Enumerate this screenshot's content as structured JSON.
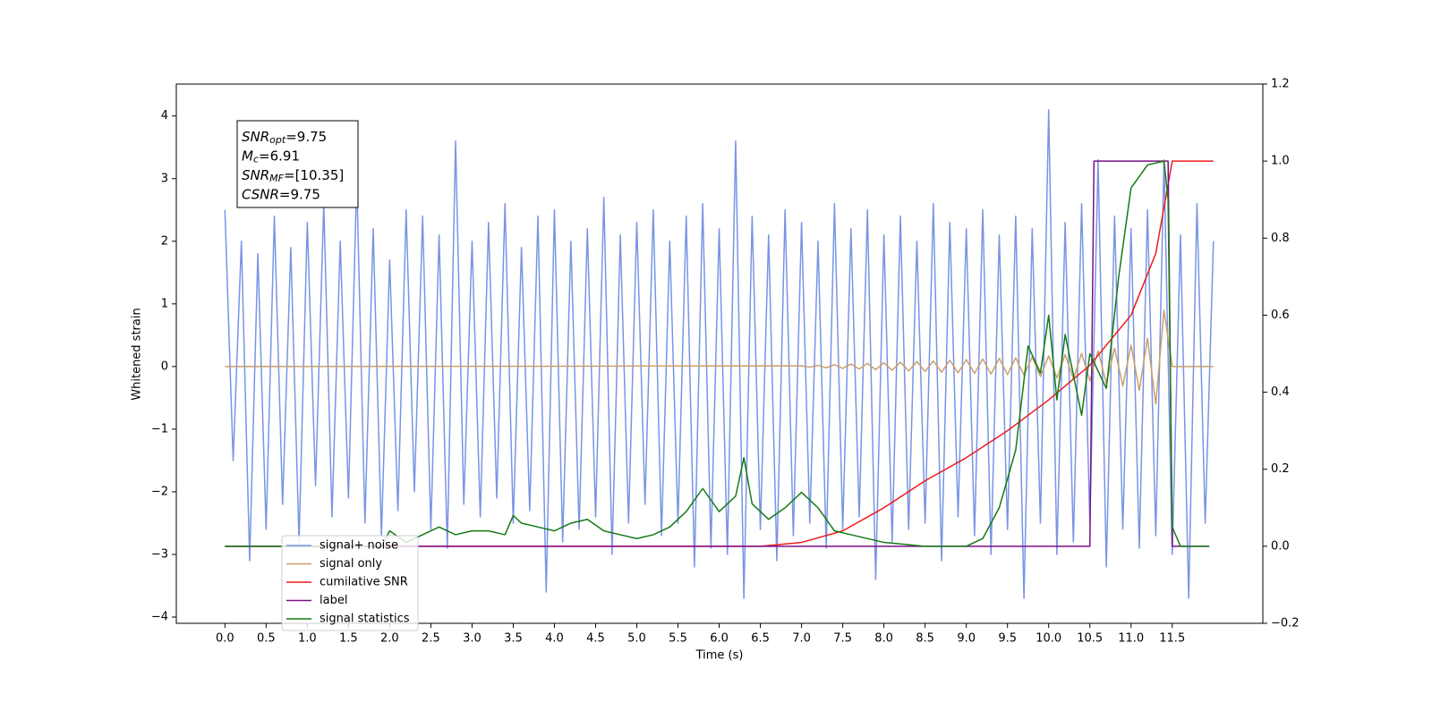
{
  "chart_data": {
    "type": "line",
    "xlabel": "Time (s)",
    "ylabel": "Whitened strain",
    "xlim": [
      -0.59,
      12.6
    ],
    "ylim": [
      -4.1,
      4.51
    ],
    "y2lim": [
      -0.2,
      1.2
    ],
    "xticks": [
      {
        "value": 0,
        "label": "0.0"
      },
      0.5,
      {
        "value": 1,
        "label": "1.0"
      },
      1.5,
      {
        "value": 2,
        "label": "2.0"
      },
      2.5,
      {
        "value": 3,
        "label": "3.0"
      },
      3.5,
      {
        "value": 4,
        "label": "4.0"
      },
      4.5,
      {
        "value": 5,
        "label": "5.0"
      },
      5.5,
      {
        "value": 6,
        "label": "6.0"
      },
      6.5,
      {
        "value": 7,
        "label": "7.0"
      },
      7.5,
      {
        "value": 8,
        "label": "8.0"
      },
      8.5,
      {
        "value": 9,
        "label": "9.0"
      },
      9.5,
      {
        "value": 10,
        "label": "10.0"
      },
      10.5,
      {
        "value": 11,
        "label": "11.0"
      },
      11.5
    ],
    "yticks": [
      {
        "value": -4,
        "label": "−4"
      },
      {
        "value": -3,
        "label": "−3"
      },
      {
        "value": -2,
        "label": "−2"
      },
      {
        "value": -1,
        "label": "−1"
      },
      0,
      1,
      2,
      3,
      4
    ],
    "y2ticks": [
      {
        "value": -0.2,
        "label": "−0.2"
      },
      {
        "value": 0,
        "label": "0.0"
      },
      0.2,
      0.4,
      0.6,
      0.8,
      {
        "value": 1,
        "label": "1.0"
      },
      1.2
    ],
    "legend": "lower left",
    "annotations": [
      {
        "symbol": "SNR",
        "subscript": "opt",
        "text": "=9.75"
      },
      {
        "symbol": "M",
        "subscript": "c",
        "text": "=6.91"
      },
      {
        "symbol": "SNR",
        "subscript": "MF",
        "text": "=[10.35]"
      },
      {
        "symbol": "CSNR",
        "subscript": null,
        "text": "=9.75"
      }
    ],
    "series": [
      {
        "name": "signal+ noise",
        "color": "#7994e6",
        "x": [
          0.0,
          0.1,
          0.2,
          0.3,
          0.4,
          0.5,
          0.6,
          0.7,
          0.8,
          0.9,
          1.0,
          1.1,
          1.2,
          1.3,
          1.4,
          1.5,
          1.6,
          1.7,
          1.8,
          1.9,
          2.0,
          2.1,
          2.2,
          2.3,
          2.4,
          2.5,
          2.6,
          2.7,
          2.8,
          2.9,
          3.0,
          3.1,
          3.2,
          3.3,
          3.4,
          3.5,
          3.6,
          3.7,
          3.8,
          3.9,
          4.0,
          4.1,
          4.2,
          4.3,
          4.4,
          4.5,
          4.6,
          4.7,
          4.8,
          4.9,
          5.0,
          5.1,
          5.2,
          5.3,
          5.4,
          5.5,
          5.6,
          5.7,
          5.8,
          5.9,
          6.0,
          6.1,
          6.2,
          6.3,
          6.4,
          6.5,
          6.6,
          6.7,
          6.8,
          6.9,
          7.0,
          7.1,
          7.2,
          7.3,
          7.4,
          7.5,
          7.6,
          7.7,
          7.8,
          7.9,
          8.0,
          8.1,
          8.2,
          8.3,
          8.4,
          8.5,
          8.6,
          8.7,
          8.8,
          8.9,
          9.0,
          9.1,
          9.2,
          9.3,
          9.4,
          9.5,
          9.6,
          9.7,
          9.8,
          9.9,
          10.0,
          10.1,
          10.2,
          10.3,
          10.4,
          10.5,
          10.6,
          10.7,
          10.8,
          10.9,
          11.0,
          11.1,
          11.2,
          11.3,
          11.4,
          11.5,
          11.6,
          11.7,
          11.8,
          11.9,
          12.0
        ],
        "values": [
          2.5,
          -1.5,
          2.0,
          -3.1,
          1.8,
          -2.6,
          2.4,
          -2.2,
          1.9,
          -2.8,
          2.3,
          -1.9,
          2.6,
          -2.4,
          2.0,
          -2.1,
          3.0,
          -2.5,
          2.2,
          -2.7,
          1.7,
          -2.3,
          2.5,
          -2.0,
          2.4,
          -2.6,
          2.1,
          -2.9,
          3.6,
          -2.2,
          2.0,
          -2.4,
          2.3,
          -2.1,
          2.6,
          -2.5,
          1.9,
          -2.3,
          2.4,
          -3.6,
          2.5,
          -2.8,
          2.0,
          -2.6,
          2.2,
          -2.4,
          2.7,
          -3.0,
          2.1,
          -2.5,
          2.3,
          -2.2,
          2.5,
          -2.7,
          2.0,
          -2.5,
          2.4,
          -3.2,
          2.6,
          -2.9,
          2.2,
          -3.0,
          3.6,
          -3.7,
          2.4,
          -2.6,
          2.1,
          -3.1,
          2.5,
          -2.7,
          2.3,
          -2.5,
          2.0,
          -2.9,
          2.6,
          -2.6,
          2.2,
          -2.4,
          2.5,
          -3.4,
          2.1,
          -2.8,
          2.4,
          -2.6,
          2.0,
          -2.5,
          2.6,
          -3.1,
          2.3,
          -2.4,
          2.2,
          -2.7,
          2.5,
          -3.0,
          2.1,
          -2.6,
          2.4,
          -3.7,
          2.2,
          -2.5,
          4.1,
          -3.0,
          2.3,
          -2.8,
          2.6,
          -2.5,
          3.3,
          -3.2,
          2.4,
          -2.6,
          2.2,
          -2.9,
          2.5,
          -2.7,
          3.3,
          -3.0,
          2.1,
          -3.7,
          2.6,
          -2.5,
          2.0
        ]
      },
      {
        "name": "signal only",
        "color": "#c9a06e",
        "x": [
          0.0,
          7.0,
          7.1,
          7.2,
          7.3,
          7.4,
          7.5,
          7.6,
          7.7,
          7.8,
          7.9,
          8.0,
          8.1,
          8.2,
          8.3,
          8.4,
          8.5,
          8.6,
          8.7,
          8.8,
          8.9,
          9.0,
          9.1,
          9.2,
          9.3,
          9.4,
          9.5,
          9.6,
          9.7,
          9.8,
          9.9,
          10.0,
          10.1,
          10.2,
          10.3,
          10.4,
          10.5,
          10.6,
          10.7,
          10.8,
          10.9,
          11.0,
          11.1,
          11.2,
          11.3,
          11.4,
          11.5,
          12.0
        ],
        "values": [
          0,
          0.01,
          -0.01,
          0.02,
          -0.02,
          0.03,
          -0.03,
          0.04,
          -0.04,
          0.05,
          -0.05,
          0.06,
          -0.06,
          0.07,
          -0.07,
          0.08,
          -0.08,
          0.09,
          -0.09,
          0.1,
          -0.1,
          0.11,
          -0.11,
          0.12,
          -0.12,
          0.13,
          -0.13,
          0.14,
          -0.14,
          0.15,
          -0.16,
          0.17,
          -0.18,
          0.19,
          -0.2,
          0.21,
          -0.23,
          0.25,
          -0.27,
          0.29,
          -0.31,
          0.34,
          -0.38,
          0.45,
          -0.6,
          0.9,
          0,
          0
        ]
      },
      {
        "name": "cumilative SNR",
        "color": "#ee1c1c",
        "axis": "y2",
        "x": [
          0.0,
          6.5,
          7.0,
          7.5,
          8.0,
          8.5,
          9.0,
          9.5,
          10.0,
          10.5,
          11.0,
          11.3,
          11.5,
          12.0
        ],
        "values": [
          0,
          0,
          0.01,
          0.04,
          0.1,
          0.17,
          0.23,
          0.3,
          0.38,
          0.47,
          0.6,
          0.76,
          1.0,
          1.0
        ]
      },
      {
        "name": "label",
        "color": "#7b0f86",
        "axis": "y2",
        "x": [
          0.0,
          10.5,
          10.55,
          11.45,
          11.5,
          11.95
        ],
        "values": [
          0,
          0,
          1,
          1,
          0,
          0
        ]
      },
      {
        "name": "signal statistics",
        "color": "#157a15",
        "axis": "y2",
        "x": [
          0.0,
          1.5,
          1.9,
          2.0,
          2.2,
          2.4,
          2.6,
          2.8,
          3.0,
          3.2,
          3.4,
          3.5,
          3.6,
          3.8,
          4.0,
          4.2,
          4.4,
          4.6,
          4.8,
          5.0,
          5.2,
          5.4,
          5.6,
          5.8,
          6.0,
          6.2,
          6.3,
          6.4,
          6.6,
          6.8,
          7.0,
          7.2,
          7.4,
          7.6,
          8.0,
          8.5,
          9.0,
          9.2,
          9.4,
          9.6,
          9.75,
          9.9,
          10.0,
          10.1,
          10.2,
          10.4,
          10.5,
          10.7,
          10.85,
          11.0,
          11.2,
          11.4,
          11.45,
          11.5,
          11.6,
          11.95
        ],
        "values": [
          0,
          0,
          0,
          0.04,
          0.01,
          0.03,
          0.05,
          0.03,
          0.04,
          0.04,
          0.03,
          0.08,
          0.06,
          0.05,
          0.04,
          0.06,
          0.07,
          0.04,
          0.03,
          0.02,
          0.03,
          0.05,
          0.09,
          0.15,
          0.09,
          0.13,
          0.23,
          0.11,
          0.07,
          0.1,
          0.14,
          0.1,
          0.04,
          0.03,
          0.01,
          0.0,
          0.0,
          0.02,
          0.1,
          0.25,
          0.52,
          0.45,
          0.6,
          0.38,
          0.55,
          0.34,
          0.5,
          0.41,
          0.7,
          0.93,
          0.99,
          1.0,
          0.9,
          0.05,
          0.0,
          0.0
        ]
      }
    ]
  }
}
